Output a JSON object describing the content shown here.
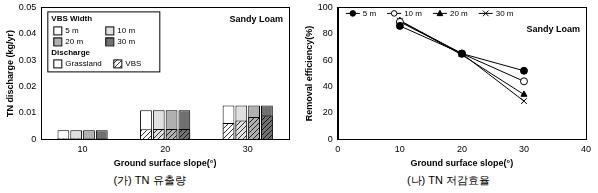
{
  "chart_data": [
    {
      "type": "bar",
      "title": "Sandy Loam",
      "caption": "(가) TN 유출량",
      "x_label": "Ground surface slope(°)",
      "y_label": "TN discharge (kg/yr)",
      "categories": [
        "10",
        "20",
        "30"
      ],
      "legend_title": "VBS Width",
      "discharge_title": "Discharge",
      "discharge_labels": [
        "Grassland",
        "VBS"
      ],
      "series": [
        {
          "name": "5 m",
          "color": "#ffffff",
          "values": [
            0.0035,
            0.011,
            0.0128
          ],
          "vbs_values": [
            0.0004,
            0.0038,
            0.0062
          ]
        },
        {
          "name": "10 m",
          "color": "#e0e0e0",
          "values": [
            0.0035,
            0.011,
            0.0128
          ],
          "vbs_values": [
            0.0004,
            0.0039,
            0.0072
          ]
        },
        {
          "name": "20 m",
          "color": "#b0b0b0",
          "values": [
            0.0035,
            0.011,
            0.0128
          ],
          "vbs_values": [
            0.0003,
            0.0039,
            0.0085
          ]
        },
        {
          "name": "30 m",
          "color": "#707070",
          "values": [
            0.0035,
            0.011,
            0.0128
          ],
          "vbs_values": [
            0.0003,
            0.0039,
            0.0091
          ]
        }
      ],
      "ylim": [
        0,
        0.05
      ],
      "yticks": [
        0,
        0.01,
        0.02,
        0.03,
        0.04,
        0.05
      ],
      "grid": false,
      "stacked": false,
      "legend": "top-left"
    },
    {
      "type": "line",
      "title": "Sandy Loam",
      "caption": "(나) TN 저감효율",
      "x_label": "Ground surface slope(°)",
      "y_label": "Removal efficiency(%)",
      "x": [
        10,
        20,
        30
      ],
      "xlim": [
        0,
        40
      ],
      "xticks": [
        0,
        10,
        20,
        30,
        40
      ],
      "ylim": [
        0,
        100
      ],
      "yticks": [
        0,
        20,
        40,
        60,
        80,
        100
      ],
      "grid": false,
      "legend": "top-left",
      "series": [
        {
          "name": "5 m",
          "color": "#000000",
          "marker": "circle",
          "values": [
            86,
            65,
            52
          ]
        },
        {
          "name": "10 m",
          "color": "#000000",
          "marker": "circle_open",
          "values": [
            89,
            65,
            44
          ]
        },
        {
          "name": "20 m",
          "color": "#000000",
          "marker": "triangle",
          "values": [
            90,
            64,
            34
          ]
        },
        {
          "name": "30 m",
          "color": "#000000",
          "marker": "x",
          "values": [
            90,
            65,
            29
          ]
        }
      ]
    }
  ]
}
